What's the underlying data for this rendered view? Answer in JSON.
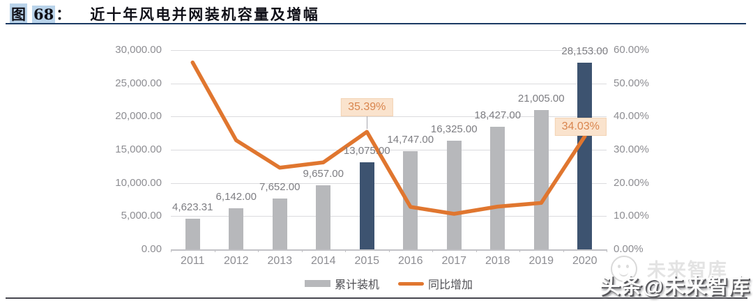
{
  "figure": {
    "tag": "图",
    "number": "68",
    "colon": "：",
    "title": "近十年风电并网装机容量及增幅"
  },
  "chart_data": {
    "type": "bar+line",
    "categories": [
      "2011",
      "2012",
      "2013",
      "2014",
      "2015",
      "2016",
      "2017",
      "2018",
      "2019",
      "2020"
    ],
    "series": [
      {
        "name": "累计装机",
        "type": "bar",
        "values": [
          4623.31,
          6142,
          7652,
          9657,
          13075,
          14747,
          16325,
          18427,
          21005,
          28153
        ],
        "labels": [
          "4,623.31",
          "6,142.00",
          "7,652.00",
          "9,657.00",
          "13,075.00",
          "14,747.00",
          "16,325.00",
          "18,427.00",
          "21,005.00",
          "28,153.00"
        ],
        "color": "#b7b8bb",
        "highlight_color": "#3d5370",
        "highlight_indices": [
          4,
          9
        ]
      },
      {
        "name": "同比增加",
        "type": "line",
        "values": [
          56.3,
          32.85,
          24.59,
          26.2,
          35.39,
          12.79,
          10.7,
          12.88,
          13.99,
          34.03
        ],
        "color": "#e0762f"
      }
    ],
    "annotations": [
      {
        "label": "35.39%",
        "index": 4,
        "dx": 0,
        "gap": 22,
        "leader": true
      },
      {
        "label": "34.03%",
        "index": 9,
        "dx": -6,
        "gap": 1,
        "leader": false
      }
    ],
    "left_axis": {
      "min": 0,
      "max": 30000,
      "tick_values": [
        0,
        5000,
        10000,
        15000,
        20000,
        25000,
        30000
      ],
      "tick_labels": [
        "0.00",
        "5,000.00",
        "10,000.00",
        "15,000.00",
        "20,000.00",
        "25,000.00",
        "30,000.00"
      ]
    },
    "right_axis": {
      "min": 0,
      "max": 60,
      "tick_values": [
        0,
        10,
        20,
        30,
        40,
        50,
        60
      ],
      "tick_labels": [
        "0.00%",
        "10.00%",
        "20.00%",
        "30.00%",
        "40.00%",
        "50.00%",
        "60.00%"
      ]
    },
    "grid": "on",
    "legend_position": "bottom-center"
  },
  "watermark": {
    "text": "头条@未来智库",
    "ghost_text": "未来智库",
    "logo": "smiley-circle-logo"
  }
}
